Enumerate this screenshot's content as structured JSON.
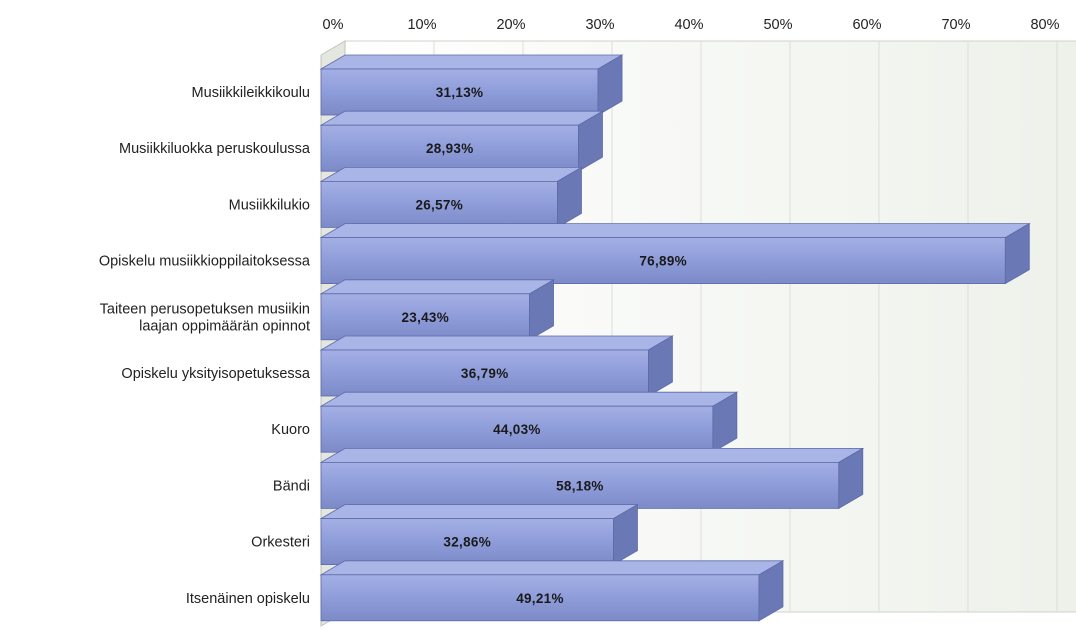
{
  "chart_data": {
    "type": "bar",
    "orientation": "horizontal",
    "style": "3d",
    "title": "",
    "xlabel": "",
    "ylabel": "",
    "x_axis_position": "top",
    "xlim": [
      0,
      80
    ],
    "x_ticks": [
      0,
      10,
      20,
      30,
      40,
      50,
      60,
      70,
      80
    ],
    "tick_suffix": "%",
    "grid": true,
    "legend": "none",
    "categories": [
      [
        "Musiikkileikkikoulu"
      ],
      [
        "Musiikkiluokka peruskoulussa"
      ],
      [
        "Musiikkilukio"
      ],
      [
        "Opiskelu musiikkioppilaitoksessa"
      ],
      [
        "Taiteen perusopetuksen musiikin",
        "laajan oppimäärän opinnot"
      ],
      [
        "Opiskelu yksityisopetuksessa"
      ],
      [
        "Kuoro"
      ],
      [
        "Bändi"
      ],
      [
        "Orkesteri"
      ],
      [
        "Itsenäinen opiskelu"
      ]
    ],
    "values": [
      31.13,
      28.93,
      26.57,
      76.89,
      23.43,
      36.79,
      44.03,
      58.18,
      32.86,
      49.21
    ],
    "value_labels": [
      "31,13%",
      "28,93%",
      "26,57%",
      "76,89%",
      "23,43%",
      "36,79%",
      "44,03%",
      "58,18%",
      "32,86%",
      "49,21%"
    ],
    "colors": {
      "bar_front": "#8d9bd8",
      "bar_top": "#a9b5e6",
      "bar_side": "#6b78b6",
      "bar_stroke": "#5d6aa8",
      "plot_bg": "#f2f4ef",
      "grid": "#dcdfd8"
    }
  }
}
